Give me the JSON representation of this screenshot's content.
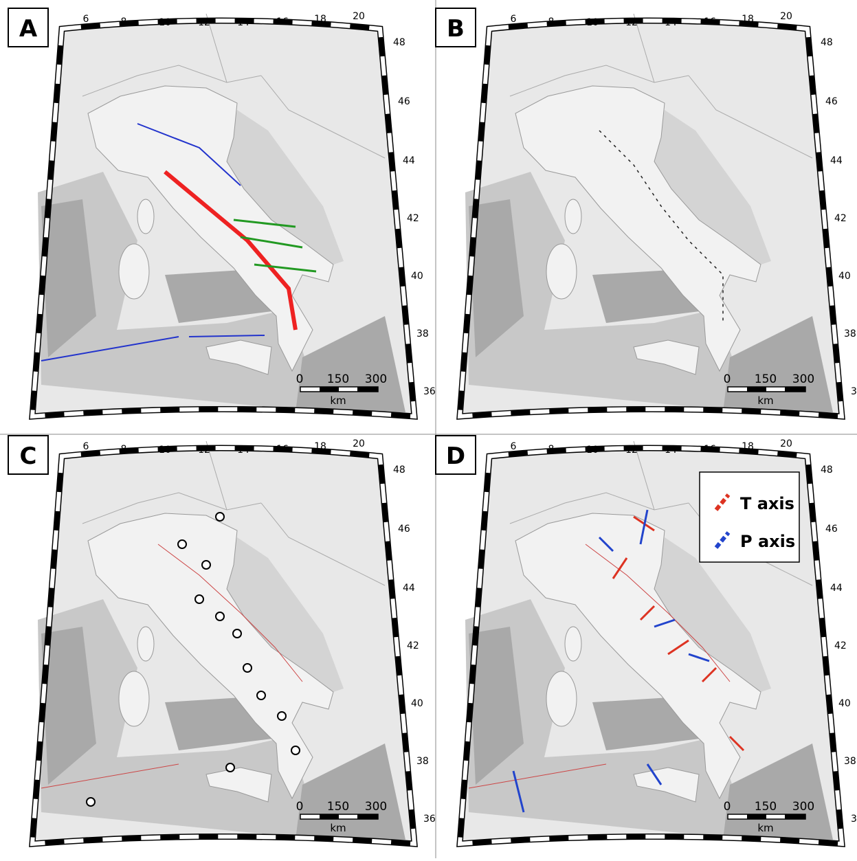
{
  "panels": [
    {
      "label": "A"
    },
    {
      "label": "B"
    },
    {
      "label": "C"
    },
    {
      "label": "D",
      "legend": [
        {
          "label": "T axis"
        },
        {
          "label": "P axis"
        }
      ]
    }
  ],
  "longitude_labels": [
    6,
    8,
    10,
    12,
    14,
    16,
    18,
    20
  ],
  "latitude_labels": [
    48,
    46,
    44,
    42,
    40,
    38,
    36
  ],
  "scale_bar": {
    "ticks": [
      0,
      150,
      300
    ],
    "unit": "km"
  }
}
